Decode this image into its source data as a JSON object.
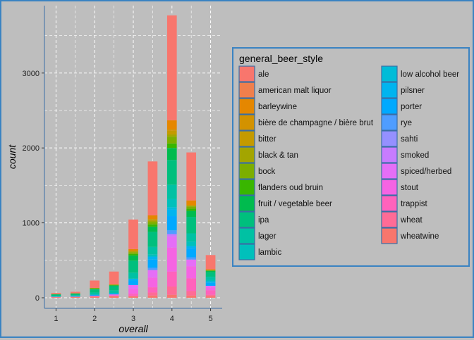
{
  "chart_data": {
    "type": "bar",
    "stacked": true,
    "grid": true,
    "legend_placement": "right",
    "xlabel": "overall",
    "ylabel": "count",
    "xticks": [
      "1",
      "2",
      "3",
      "4",
      "5"
    ],
    "yticks": [
      "0",
      "1000",
      "2000",
      "3000"
    ],
    "ylim": [
      0,
      3900
    ],
    "xlim": [
      0.7,
      5.3
    ],
    "legend_title": "general_beer_style",
    "styles": [
      {
        "name": "ale",
        "color": "#F8766D"
      },
      {
        "name": "american malt liquor",
        "color": "#F07F4C"
      },
      {
        "name": "barleywine",
        "color": "#E58700"
      },
      {
        "name": "bière de champagne / bière brut",
        "color": "#D39200"
      },
      {
        "name": "bitter",
        "color": "#C49A00"
      },
      {
        "name": "black & tan",
        "color": "#A3A500"
      },
      {
        "name": "bock",
        "color": "#7CAE00"
      },
      {
        "name": "flanders oud bruin",
        "color": "#39B600"
      },
      {
        "name": "fruit / vegetable beer",
        "color": "#00BB4E"
      },
      {
        "name": "ipa",
        "color": "#00BF7D"
      },
      {
        "name": "lager",
        "color": "#00C1A3"
      },
      {
        "name": "lambic",
        "color": "#00C0BB"
      },
      {
        "name": "low alcohol beer",
        "color": "#00BCD8"
      },
      {
        "name": "pilsner",
        "color": "#00B4EF"
      },
      {
        "name": "porter",
        "color": "#00A9FF"
      },
      {
        "name": "rye",
        "color": "#4F9DFF"
      },
      {
        "name": "sahti",
        "color": "#9590FF"
      },
      {
        "name": "smoked",
        "color": "#C77CFF"
      },
      {
        "name": "spiced/herbed",
        "color": "#E56EF7"
      },
      {
        "name": "stout",
        "color": "#F564E3"
      },
      {
        "name": "trappist",
        "color": "#FF62BC"
      },
      {
        "name": "wheat",
        "color": "#FF6B96"
      },
      {
        "name": "wheatwine",
        "color": "#F8766D"
      }
    ],
    "bars": [
      {
        "x": 1,
        "segments": [
          {
            "style": "wheatwine",
            "value": 8
          },
          {
            "style": "trappist",
            "value": 4
          },
          {
            "style": "porter",
            "value": 4
          },
          {
            "style": "lager",
            "value": 12
          },
          {
            "style": "ipa",
            "value": 14
          },
          {
            "style": "fruit / vegetable beer",
            "value": 4
          },
          {
            "style": "bock",
            "value": 4
          },
          {
            "style": "ale",
            "value": 15
          }
        ]
      },
      {
        "x": 1.5,
        "segments": [
          {
            "style": "wheatwine",
            "value": 10
          },
          {
            "style": "trappist",
            "value": 5
          },
          {
            "style": "porter",
            "value": 5
          },
          {
            "style": "lager",
            "value": 15
          },
          {
            "style": "ipa",
            "value": 16
          },
          {
            "style": "fruit / vegetable beer",
            "value": 5
          },
          {
            "style": "bock",
            "value": 4
          },
          {
            "style": "ale",
            "value": 20
          }
        ]
      },
      {
        "x": 2,
        "segments": [
          {
            "style": "wheatwine",
            "value": 15
          },
          {
            "style": "trappist",
            "value": 12
          },
          {
            "style": "porter",
            "value": 14
          },
          {
            "style": "lager",
            "value": 30
          },
          {
            "style": "ipa",
            "value": 40
          },
          {
            "style": "fruit / vegetable beer",
            "value": 10
          },
          {
            "style": "bock",
            "value": 6
          },
          {
            "style": "bitter",
            "value": 5
          },
          {
            "style": "ale",
            "value": 98
          }
        ]
      },
      {
        "x": 2.5,
        "segments": [
          {
            "style": "wheatwine",
            "value": 25
          },
          {
            "style": "stout",
            "value": 20
          },
          {
            "style": "porter",
            "value": 15
          },
          {
            "style": "lager",
            "value": 40
          },
          {
            "style": "ipa",
            "value": 55
          },
          {
            "style": "fruit / vegetable beer",
            "value": 10
          },
          {
            "style": "bock",
            "value": 8
          },
          {
            "style": "bitter",
            "value": 5
          },
          {
            "style": "ale",
            "value": 172
          }
        ]
      },
      {
        "x": 3,
        "segments": [
          {
            "style": "wheatwine",
            "value": 20
          },
          {
            "style": "trappist",
            "value": 35
          },
          {
            "style": "stout",
            "value": 65
          },
          {
            "style": "spiced/herbed",
            "value": 50
          },
          {
            "style": "porter",
            "value": 60
          },
          {
            "style": "pilsner",
            "value": 25
          },
          {
            "style": "lager",
            "value": 80
          },
          {
            "style": "ipa",
            "value": 160
          },
          {
            "style": "fruit / vegetable beer",
            "value": 70
          },
          {
            "style": "flanders oud bruin",
            "value": 20
          },
          {
            "style": "bock",
            "value": 20
          },
          {
            "style": "black & tan",
            "value": 10
          },
          {
            "style": "bitter",
            "value": 15
          },
          {
            "style": "barleywine",
            "value": 20
          },
          {
            "style": "ale",
            "value": 395
          }
        ]
      },
      {
        "x": 3.5,
        "segments": [
          {
            "style": "wheatwine",
            "value": 30
          },
          {
            "style": "wheat",
            "value": 40
          },
          {
            "style": "trappist",
            "value": 70
          },
          {
            "style": "stout",
            "value": 130
          },
          {
            "style": "spiced/herbed",
            "value": 100
          },
          {
            "style": "rye",
            "value": 30
          },
          {
            "style": "porter",
            "value": 110
          },
          {
            "style": "pilsner",
            "value": 40
          },
          {
            "style": "lambic",
            "value": 30
          },
          {
            "style": "lager",
            "value": 100
          },
          {
            "style": "ipa",
            "value": 200
          },
          {
            "style": "fruit / vegetable beer",
            "value": 70
          },
          {
            "style": "flanders oud bruin",
            "value": 30
          },
          {
            "style": "bock",
            "value": 30
          },
          {
            "style": "black & tan",
            "value": 20
          },
          {
            "style": "bitter",
            "value": 20
          },
          {
            "style": "barleywine",
            "value": 50
          },
          {
            "style": "ale",
            "value": 720
          }
        ]
      },
      {
        "x": 4,
        "segments": [
          {
            "style": "wheatwine",
            "value": 40
          },
          {
            "style": "wheat",
            "value": 110
          },
          {
            "style": "trappist",
            "value": 200
          },
          {
            "style": "stout",
            "value": 320
          },
          {
            "style": "spiced/herbed",
            "value": 150
          },
          {
            "style": "smoked",
            "value": 30
          },
          {
            "style": "rye",
            "value": 50
          },
          {
            "style": "porter",
            "value": 190
          },
          {
            "style": "pilsner",
            "value": 90
          },
          {
            "style": "low alcohol beer",
            "value": 30
          },
          {
            "style": "lambic",
            "value": 110
          },
          {
            "style": "lager",
            "value": 190
          },
          {
            "style": "ipa",
            "value": 330
          },
          {
            "style": "fruit / vegetable beer",
            "value": 160
          },
          {
            "style": "flanders oud bruin",
            "value": 60
          },
          {
            "style": "bock",
            "value": 90
          },
          {
            "style": "black & tan",
            "value": 30
          },
          {
            "style": "bitter",
            "value": 50
          },
          {
            "style": "bière de champagne / bière brut",
            "value": 20
          },
          {
            "style": "barleywine",
            "value": 120
          },
          {
            "style": "ale",
            "value": 1400
          }
        ]
      },
      {
        "x": 4.5,
        "segments": [
          {
            "style": "wheatwine",
            "value": 30
          },
          {
            "style": "wheat",
            "value": 60
          },
          {
            "style": "trappist",
            "value": 170
          },
          {
            "style": "stout",
            "value": 160
          },
          {
            "style": "spiced/herbed",
            "value": 90
          },
          {
            "style": "rye",
            "value": 30
          },
          {
            "style": "porter",
            "value": 120
          },
          {
            "style": "pilsner",
            "value": 30
          },
          {
            "style": "lambic",
            "value": 60
          },
          {
            "style": "lager",
            "value": 110
          },
          {
            "style": "ipa",
            "value": 220
          },
          {
            "style": "fruit / vegetable beer",
            "value": 80
          },
          {
            "style": "flanders oud bruin",
            "value": 30
          },
          {
            "style": "bock",
            "value": 30
          },
          {
            "style": "bitter",
            "value": 20
          },
          {
            "style": "barleywine",
            "value": 60
          },
          {
            "style": "ale",
            "value": 640
          }
        ]
      },
      {
        "x": 5,
        "segments": [
          {
            "style": "wheatwine",
            "value": 20
          },
          {
            "style": "wheat",
            "value": 20
          },
          {
            "style": "trappist",
            "value": 60
          },
          {
            "style": "stout",
            "value": 40
          },
          {
            "style": "spiced/herbed",
            "value": 20
          },
          {
            "style": "porter",
            "value": 40
          },
          {
            "style": "pilsner",
            "value": 20
          },
          {
            "style": "lambic",
            "value": 20
          },
          {
            "style": "lager",
            "value": 40
          },
          {
            "style": "ipa",
            "value": 60
          },
          {
            "style": "fruit / vegetable beer",
            "value": 20
          },
          {
            "style": "bock",
            "value": 10
          },
          {
            "style": "barleywine",
            "value": 10
          },
          {
            "style": "ale",
            "value": 190
          }
        ]
      }
    ]
  }
}
